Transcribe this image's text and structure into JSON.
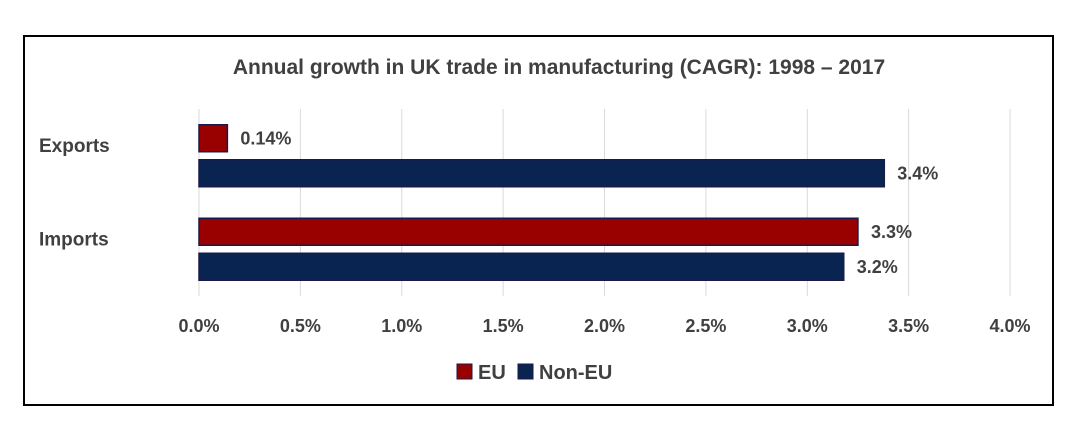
{
  "chart_data": {
    "type": "bar",
    "orientation": "horizontal",
    "title": "Annual growth in UK trade in manufacturing (CAGR): 1998 – 2017",
    "categories": [
      "Exports",
      "Imports"
    ],
    "series": [
      {
        "name": "EU",
        "color": "#990000",
        "values": [
          0.14,
          3.25
        ],
        "labels": [
          "0.14%",
          "3.3%"
        ]
      },
      {
        "name": "Non-EU",
        "color": "#0a2451",
        "values": [
          3.38,
          3.18
        ],
        "labels": [
          "3.4%",
          "3.2%"
        ]
      }
    ],
    "xlim": [
      0,
      4.0
    ],
    "x_ticks": [
      "0.0%",
      "0.5%",
      "1.0%",
      "1.5%",
      "2.0%",
      "2.5%",
      "3.0%",
      "3.5%",
      "4.0%"
    ],
    "grid": "vertical",
    "legend": "bottom"
  }
}
